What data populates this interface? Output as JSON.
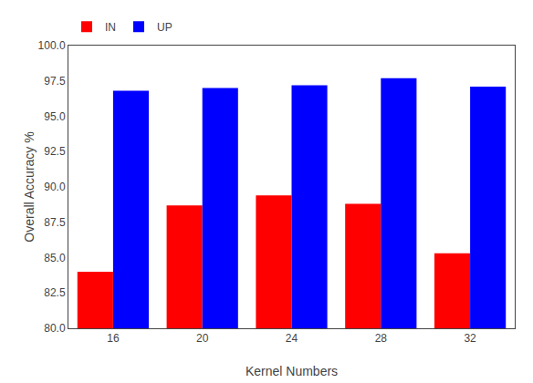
{
  "chart_data": {
    "type": "bar",
    "xlabel": "Kernel Numbers",
    "ylabel": "Overall Accuracy %",
    "categories": [
      "16",
      "20",
      "24",
      "28",
      "32"
    ],
    "series": [
      {
        "name": "IN",
        "color": "#ff0000",
        "values": [
          84.0,
          88.7,
          89.4,
          88.8,
          85.3
        ]
      },
      {
        "name": "UP",
        "color": "#0000ff",
        "values": [
          96.8,
          97.0,
          97.2,
          97.7,
          97.1
        ]
      }
    ],
    "ylim": [
      80.0,
      100.0
    ],
    "yticks": [
      {
        "value": 80.0,
        "label": "80.0"
      },
      82.5,
      {
        "value": 85.0,
        "label": "85.0"
      },
      87.5,
      {
        "value": 90.0,
        "label": "90.0"
      },
      92.5,
      {
        "value": 95.0,
        "label": "95.0"
      },
      97.5,
      {
        "value": 100.0,
        "label": "100.0"
      }
    ],
    "grid": false,
    "legend": "upper left"
  }
}
